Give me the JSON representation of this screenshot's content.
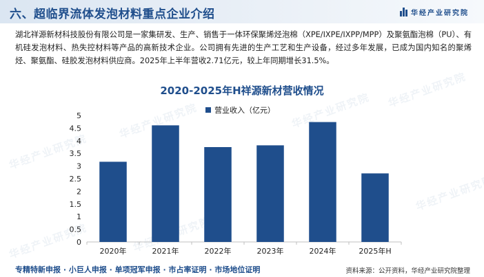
{
  "header": {
    "title": "六、超临界流体发泡材料重点企业介绍",
    "brand": "华经产业研究院"
  },
  "intro": "湖北祥源新材科技股份有限公司是一家集研发、生产、销售于一体环保聚烯烃泡棉（XPE/IXPE/IXPP/MPP）及聚氨酯泡棉（PU）、有机硅发泡材料、热失控材料等产品的高新技术企业。公司拥有先进的生产工艺和生产设备，经过多年发展，已成为国内知名的聚烯烃、聚氨酯、硅胶发泡材料供应商。2025年上半年营收2.71亿元，较上年同期增长31.5%。",
  "watermark": "华经产业研究院",
  "chart_data": {
    "type": "bar",
    "title": "2020-2025年H祥源新材营收情况",
    "categories": [
      "2020年",
      "2021年",
      "2022年",
      "2023年",
      "2024年",
      "2025年H"
    ],
    "series": [
      {
        "name": "营业收入（亿元）",
        "values": [
          3.17,
          4.61,
          3.75,
          3.82,
          4.74,
          2.71
        ]
      }
    ],
    "ylim": [
      0,
      5
    ],
    "yticks": [
      "0",
      "0.5",
      "1",
      "1.5",
      "2",
      "2.5",
      "3",
      "3.5",
      "4",
      "4.5",
      "5"
    ],
    "ytick_values": [
      0,
      0.5,
      1,
      1.5,
      2,
      2.5,
      3,
      3.5,
      4,
      4.5,
      5
    ],
    "bar_color": "#1f4e8c",
    "grid": false,
    "legend_position": "top-center"
  },
  "footer": {
    "left": "专精特新申报 · 小巨人申报 · 单项冠军申报 · 市占率证明 · 市场地位证明",
    "right": "资料来源：公开资料，华经产业研究院整理"
  }
}
